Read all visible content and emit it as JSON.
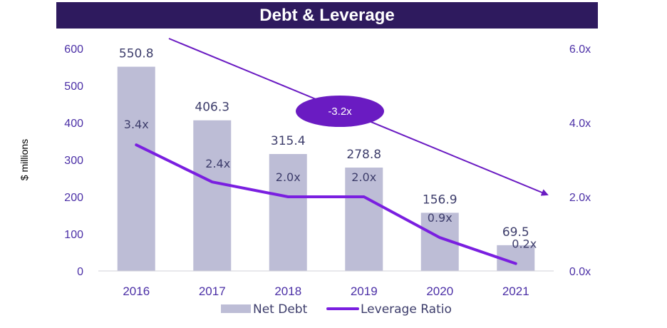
{
  "chart_data": {
    "type": "bar",
    "title": "Debt & Leverage",
    "categories": [
      "2016",
      "2017",
      "2018",
      "2019",
      "2020",
      "2021"
    ],
    "series": [
      {
        "name": "Net Debt",
        "type": "bar",
        "axis": "left",
        "values": [
          550.8,
          406.3,
          315.4,
          278.8,
          156.9,
          69.5
        ],
        "labels": [
          "550.8",
          "406.3",
          "315.4",
          "278.8",
          "156.9",
          "69.5"
        ]
      },
      {
        "name": "Leverage Ratio",
        "type": "line",
        "axis": "right",
        "values": [
          3.4,
          2.4,
          2.0,
          2.0,
          0.9,
          0.2
        ],
        "labels": [
          "3.4x",
          "2.4x",
          "2.0x",
          "2.0x",
          "0.9x",
          "0.2x"
        ]
      }
    ],
    "ylabel": "$ millions",
    "ylim": [
      0,
      600
    ],
    "yticks": [
      "0",
      "100",
      "200",
      "300",
      "400",
      "500",
      "600"
    ],
    "y2lim": [
      0,
      6
    ],
    "y2ticks": [
      "0.0x",
      "2.0x",
      "4.0x",
      "6.0x"
    ],
    "annotation": {
      "text": "-3.2x",
      "from_ratio": 6.0,
      "to_ratio": 2.0
    },
    "legend_position": "bottom",
    "colors": {
      "bar": "#bdbdd6",
      "line": "#7a1fe0",
      "arrow": "#6a1bc2",
      "title_bg": "#2e1a5e",
      "axis_text": "#4b2fa6"
    }
  }
}
